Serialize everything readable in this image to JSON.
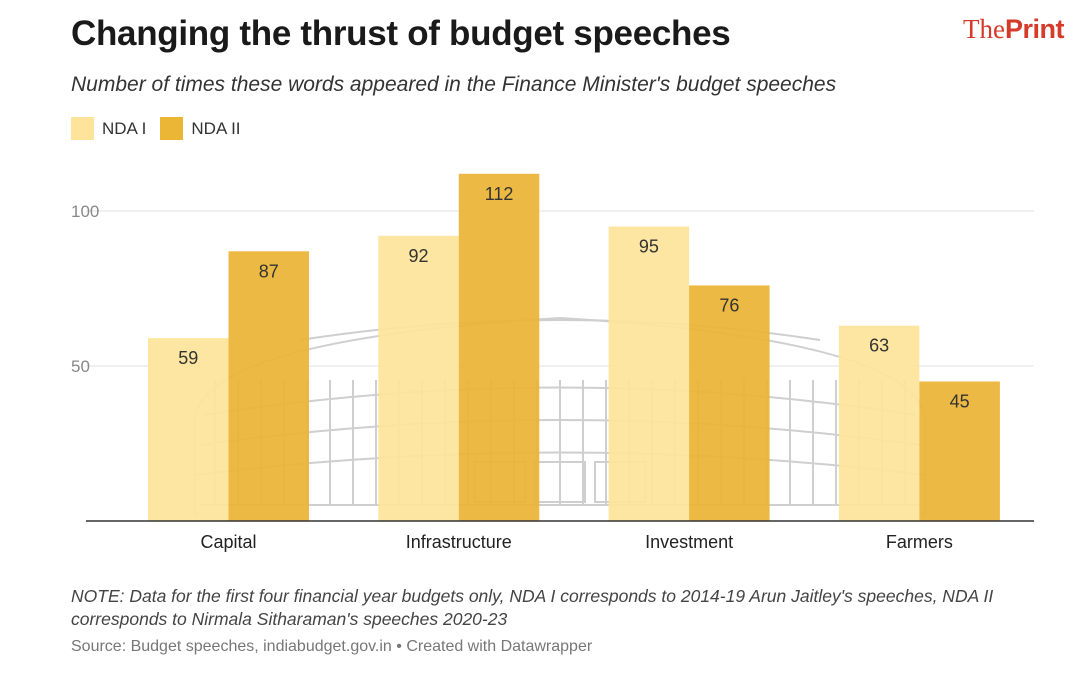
{
  "title": "Changing the thrust of budget speeches",
  "brand": {
    "prefix": "The",
    "name": "Print"
  },
  "subtitle": "Number of times these words appeared in the Finance Minister's budget speeches",
  "legend": [
    {
      "label": "NDA I",
      "color": "#fde49a"
    },
    {
      "label": "NDA II",
      "color": "#ebb536"
    }
  ],
  "chart_data": {
    "type": "bar",
    "categories": [
      "Capital",
      "Infrastructure",
      "Investment",
      "Farmers"
    ],
    "series": [
      {
        "name": "NDA I",
        "values": [
          59,
          92,
          95,
          63
        ],
        "color": "#fde49a"
      },
      {
        "name": "NDA II",
        "values": [
          87,
          112,
          76,
          45
        ],
        "color": "#ebb536"
      }
    ],
    "yticks": [
      50,
      100
    ],
    "ylim": [
      0,
      115
    ],
    "title": "Changing the thrust of budget speeches",
    "xlabel": "",
    "ylabel": ""
  },
  "note": "NOTE: Data for the first four financial year budgets only, NDA I corresponds to 2014-19 Arun Jaitley's speeches, NDA II corresponds to Nirmala Sitharaman's speeches 2020-23",
  "source": "Source: Budget speeches, indiabudget.gov.in • Created with Datawrapper"
}
